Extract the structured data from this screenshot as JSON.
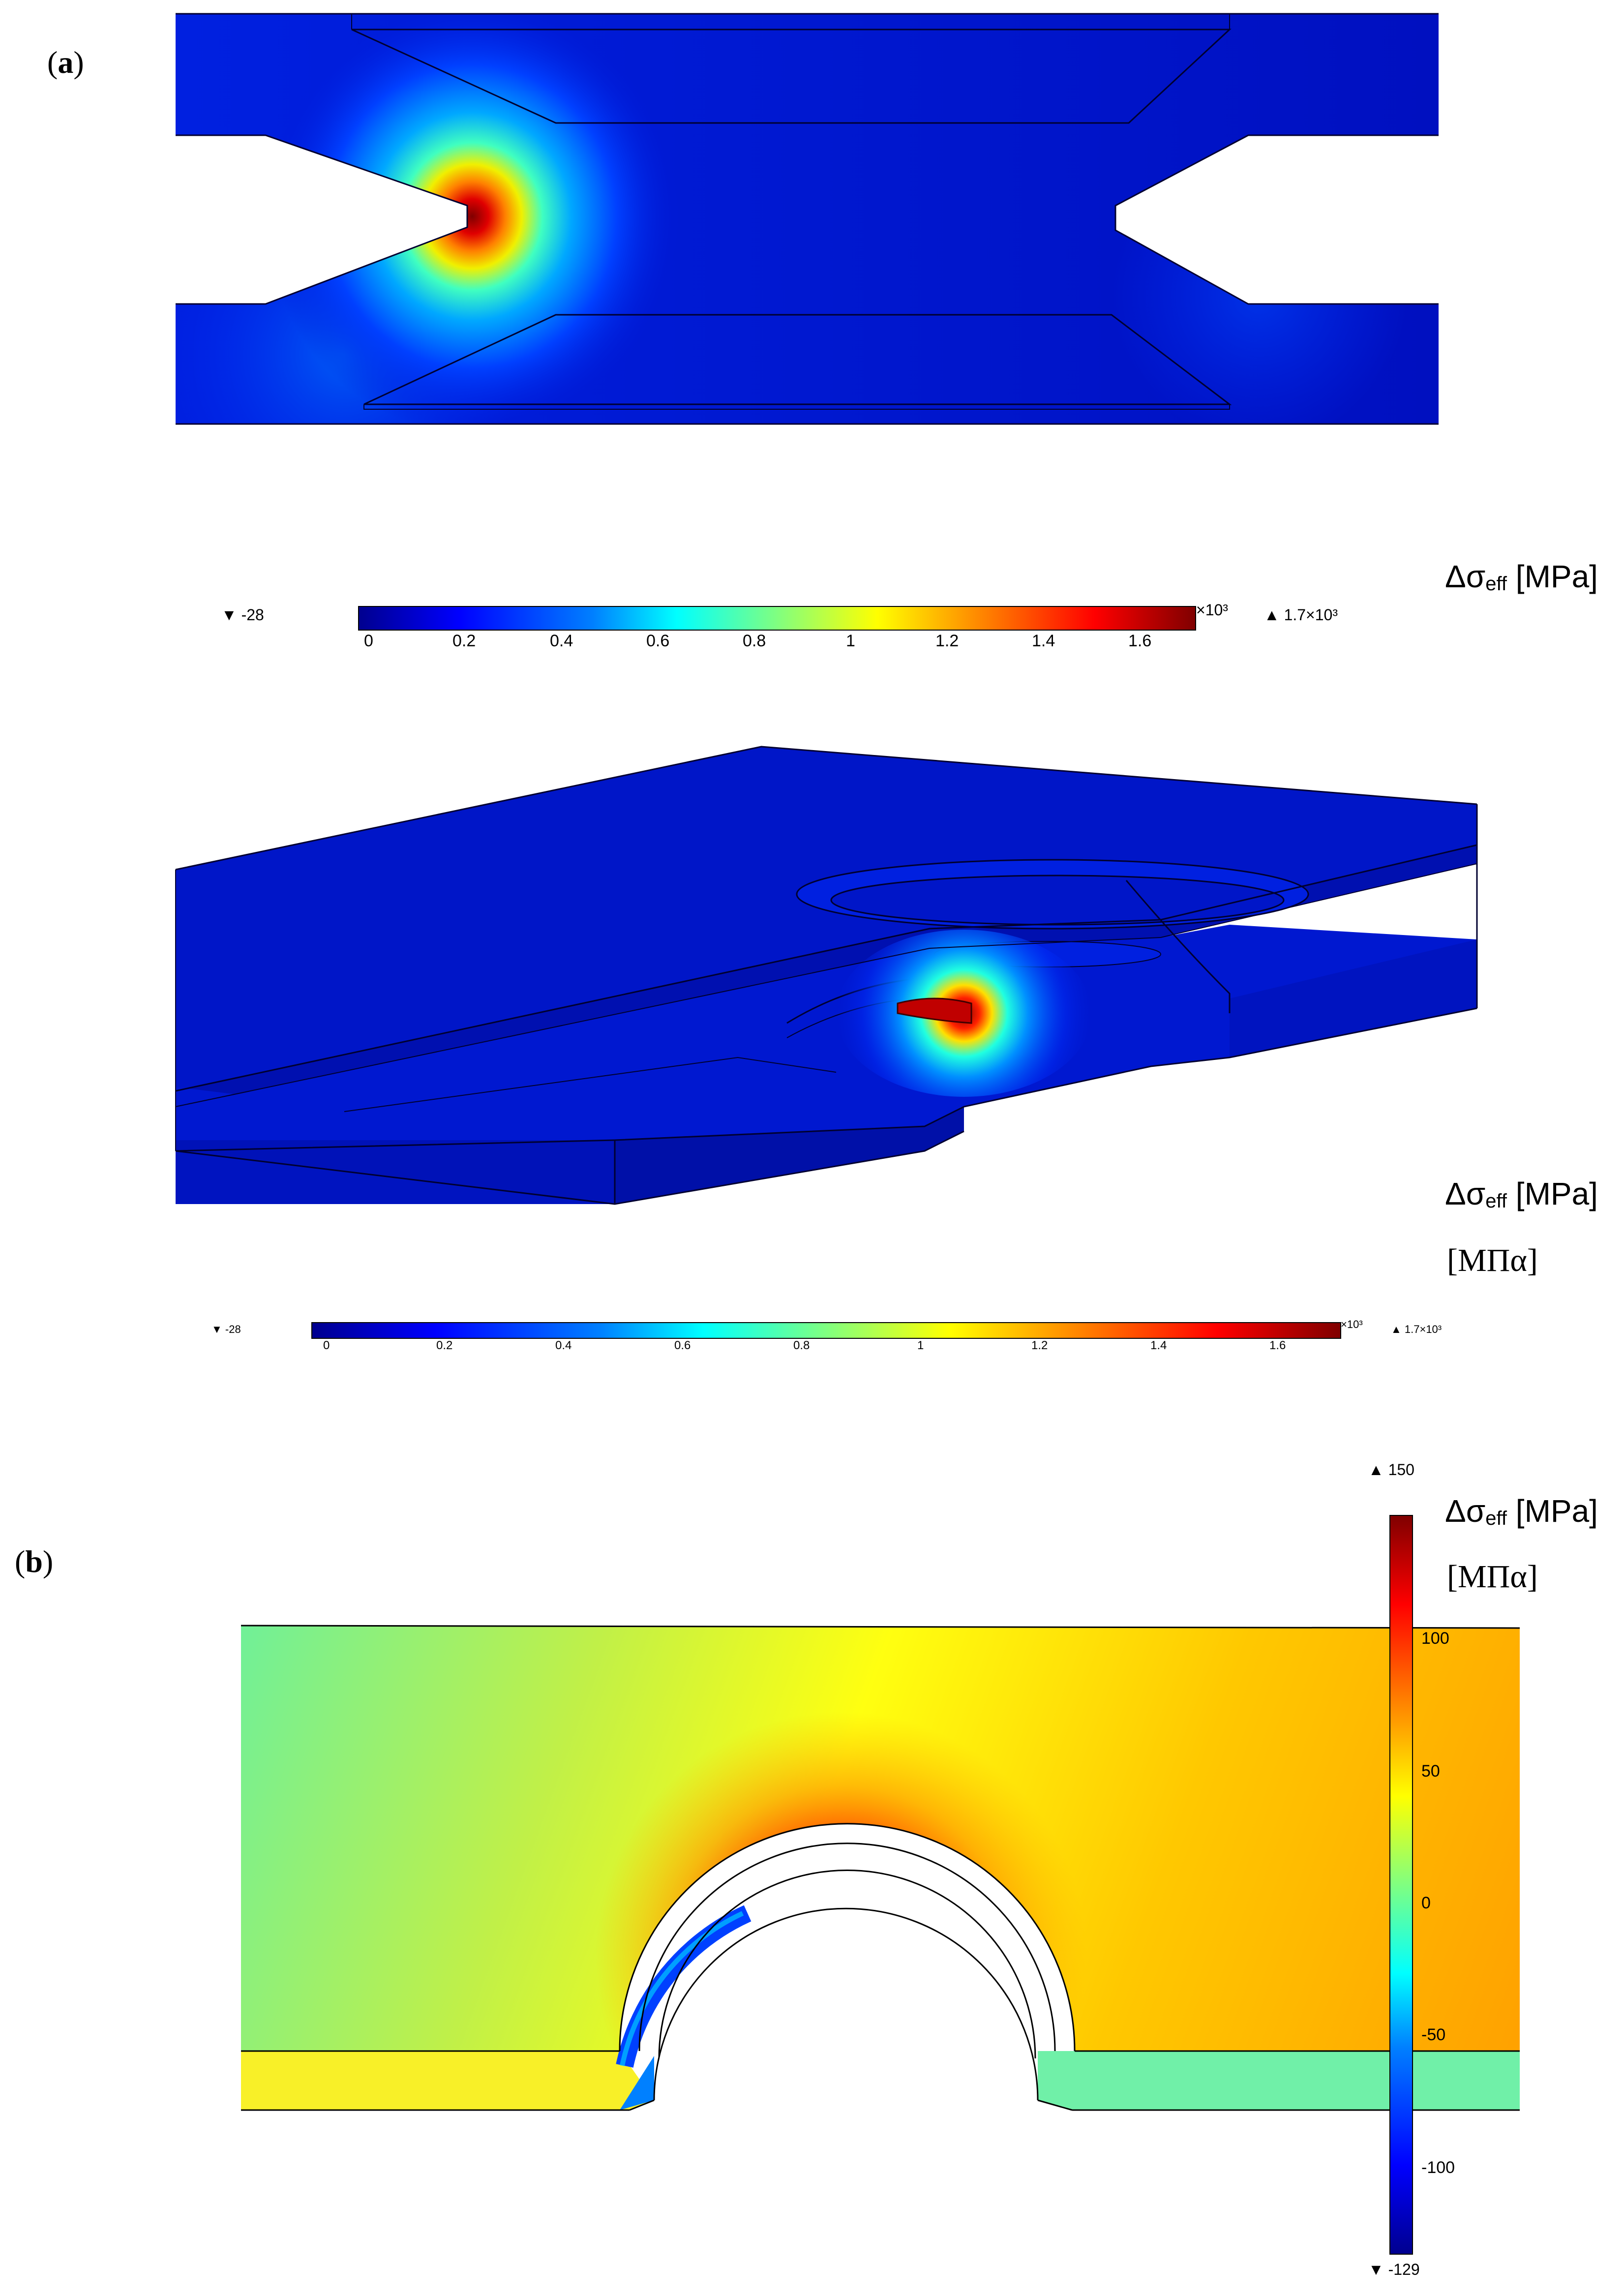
{
  "panels": {
    "a": {
      "label_open": "(",
      "label_letter": "a",
      "label_close": ")"
    },
    "b": {
      "label_open": "(",
      "label_letter": "b",
      "label_close": ")"
    }
  },
  "colorbar_top": {
    "unit_prefix": "Δσ",
    "unit_sub": "eff",
    "unit_suffix": " [MPa]",
    "min_marker": "▼ -28",
    "max_marker": "▲ 1.7×10³",
    "multiplier": "×10³",
    "ticks": [
      "0",
      "0.2",
      "0.4",
      "0.6",
      "0.8",
      "1",
      "1.2",
      "1.4",
      "1.6"
    ],
    "range": [
      -0.028,
      1.7
    ]
  },
  "colorbar_middle": {
    "unit_prefix": "Δσ",
    "unit_sub": "eff",
    "unit_suffix": " [MPa]",
    "greek_unit": "[ΜΠα]",
    "min_marker": "▼ -28",
    "max_marker": "▲ 1.7×10³",
    "multiplier": "×10³",
    "ticks": [
      "0",
      "0.2",
      "0.4",
      "0.6",
      "0.8",
      "1",
      "1.2",
      "1.4",
      "1.6"
    ],
    "range": [
      -0.028,
      1.7
    ]
  },
  "colorbar_b": {
    "unit_prefix": "Δσ",
    "unit_sub": "eff",
    "unit_suffix": " [MPa]",
    "greek_unit": "[ΜΠα]",
    "max_marker": "▲ 150",
    "min_marker": "▼ -129",
    "ticks": [
      "100",
      "50",
      "0",
      "-50",
      "-100"
    ],
    "range": [
      -129,
      150
    ]
  },
  "colors": {
    "jet_dark_blue": "#00008f",
    "jet_blue": "#0000ff",
    "jet_cyan": "#00ffff",
    "jet_yellow": "#ffff00",
    "jet_red": "#ff0000",
    "jet_dark_red": "#800000"
  }
}
